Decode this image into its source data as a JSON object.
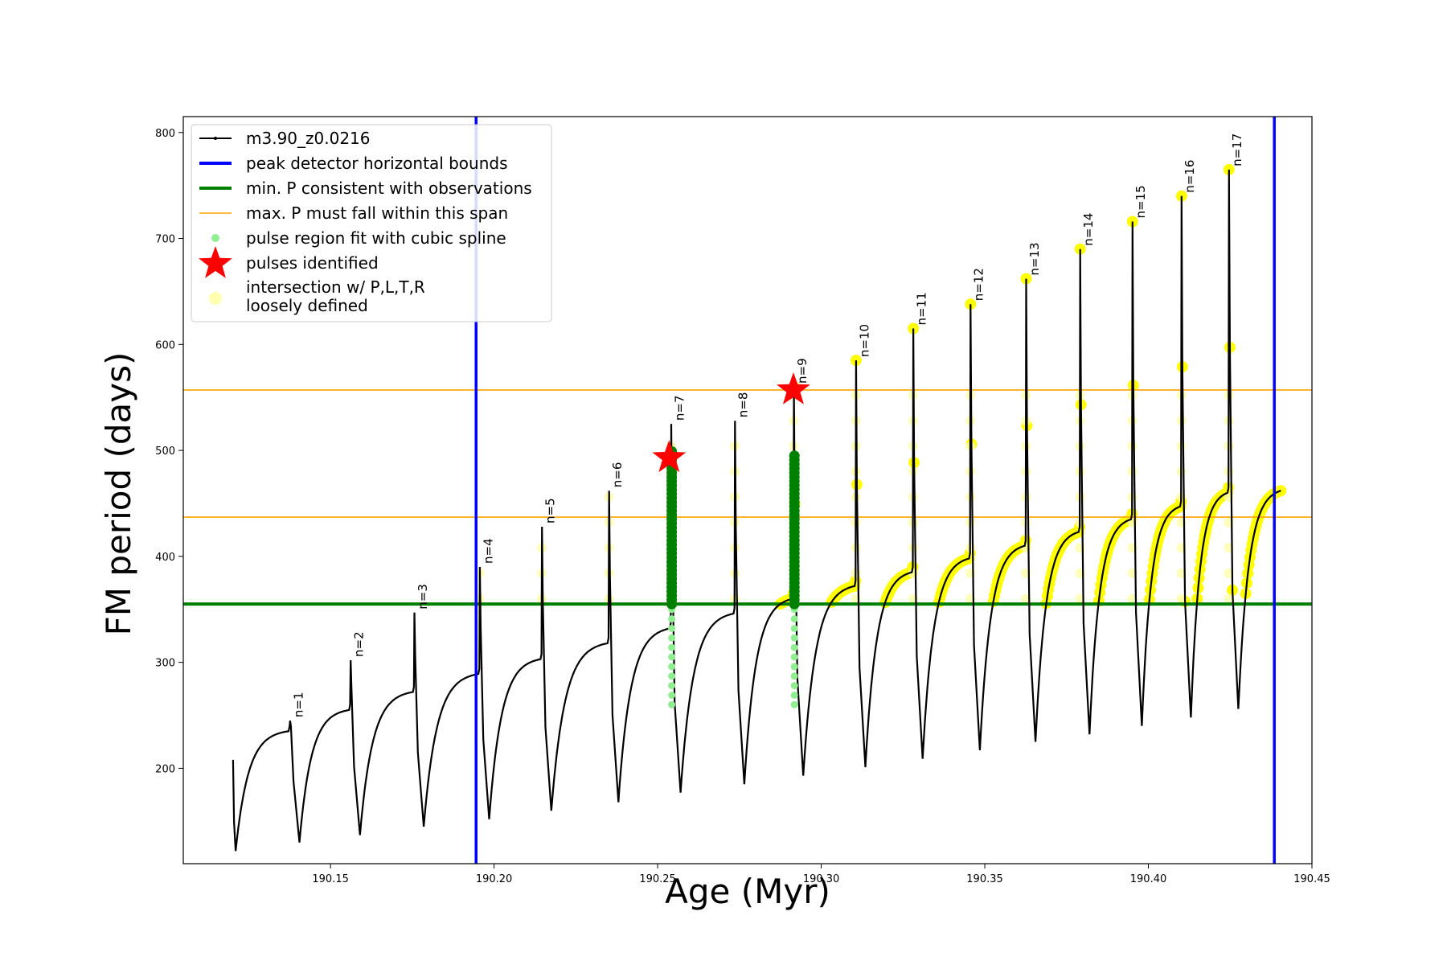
{
  "chart_data": {
    "type": "line",
    "xlabel": "Age (Myr)",
    "ylabel": "FM period (days)",
    "xlim": [
      190.105,
      190.45
    ],
    "ylim": [
      110,
      815
    ],
    "xticks": [
      "190.15",
      "190.20",
      "190.25",
      "190.30",
      "190.35",
      "190.40",
      "190.45"
    ],
    "yticks": [
      "200",
      "300",
      "400",
      "500",
      "600",
      "700",
      "800"
    ],
    "legend_position": "upper-left",
    "legend": [
      {
        "label": "m3.90_z0.0216",
        "kind": "line-marker",
        "color": "#000000"
      },
      {
        "label": "peak detector horizontal bounds",
        "kind": "line",
        "color": "#0000ff"
      },
      {
        "label": "min. P consistent with observations",
        "kind": "line",
        "color": "#008000"
      },
      {
        "label": "max. P must fall within this span",
        "kind": "line",
        "color": "#ffa500"
      },
      {
        "label": "pulse region fit with cubic spline",
        "kind": "dot",
        "color": "#90ee90"
      },
      {
        "label": "pulses identified",
        "kind": "star",
        "color": "#ff0000"
      },
      {
        "label": "intersection w/ P,L,T,R",
        "label2": "loosely defined",
        "kind": "circle",
        "color": "#ffffb0"
      }
    ],
    "vertical_lines": [
      190.1945,
      190.4385
    ],
    "hlines": [
      {
        "y": 355,
        "color": "#008000"
      },
      {
        "y": 437,
        "color": "#ffa500"
      },
      {
        "y": 557,
        "color": "#ffa500"
      }
    ],
    "pulses": [
      {
        "n": 1,
        "x": 190.1375,
        "peak": 245,
        "min": 130,
        "pre_plateau": 235
      },
      {
        "n": 2,
        "x": 190.156,
        "peak": 302,
        "min": 137,
        "pre_plateau": 255
      },
      {
        "n": 3,
        "x": 190.1755,
        "peak": 347,
        "min": 145,
        "pre_plateau": 272
      },
      {
        "n": 4,
        "x": 190.1955,
        "peak": 390,
        "min": 152,
        "pre_plateau": 289
      },
      {
        "n": 5,
        "x": 190.2145,
        "peak": 428,
        "min": 160,
        "pre_plateau": 303
      },
      {
        "n": 6,
        "x": 190.235,
        "peak": 462,
        "min": 168,
        "pre_plateau": 318
      },
      {
        "n": 7,
        "x": 190.254,
        "peak": 525,
        "min": 177,
        "pre_plateau": 332
      },
      {
        "n": 8,
        "x": 190.2735,
        "peak": 528,
        "min": 185,
        "pre_plateau": 346
      },
      {
        "n": 9,
        "x": 190.2915,
        "peak": 560,
        "min": 193,
        "pre_plateau": 360
      },
      {
        "n": 10,
        "x": 190.3105,
        "peak": 585,
        "min": 201,
        "pre_plateau": 372
      },
      {
        "n": 11,
        "x": 190.328,
        "peak": 615,
        "min": 209,
        "pre_plateau": 385
      },
      {
        "n": 12,
        "x": 190.3455,
        "peak": 638,
        "min": 217,
        "pre_plateau": 398
      },
      {
        "n": 13,
        "x": 190.3625,
        "peak": 662,
        "min": 225,
        "pre_plateau": 410
      },
      {
        "n": 14,
        "x": 190.379,
        "peak": 690,
        "min": 232,
        "pre_plateau": 423
      },
      {
        "n": 15,
        "x": 190.395,
        "peak": 716,
        "min": 240,
        "pre_plateau": 435
      },
      {
        "n": 16,
        "x": 190.41,
        "peak": 740,
        "min": 248,
        "pre_plateau": 447
      },
      {
        "n": 17,
        "x": 190.4245,
        "peak": 765,
        "min": 256,
        "pre_plateau": 460
      }
    ],
    "series_start": {
      "x": 190.1202,
      "y": 208
    },
    "series_end": {
      "x": 190.4405,
      "y": 462
    },
    "pulses_identified": [
      {
        "x": 190.2535,
        "y": 493
      },
      {
        "x": 190.2915,
        "y": 557
      }
    ]
  }
}
